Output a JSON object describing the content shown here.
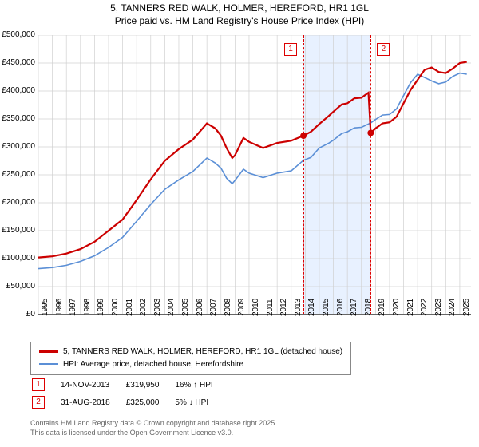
{
  "title_line1": "5, TANNERS RED WALK, HOLMER, HEREFORD, HR1 1GL",
  "title_line2": "Price paid vs. HM Land Registry's House Price Index (HPI)",
  "chart": {
    "type": "line",
    "xlim": [
      1995,
      2025.8
    ],
    "ylim": [
      0,
      500000
    ],
    "ytick_labels": [
      "£0",
      "£50,000",
      "£100,000",
      "£150,000",
      "£200,000",
      "£250,000",
      "£300,000",
      "£350,000",
      "£400,000",
      "£450,000",
      "£500,000"
    ],
    "yticks": [
      0,
      50000,
      100000,
      150000,
      200000,
      250000,
      300000,
      350000,
      400000,
      450000,
      500000
    ],
    "xticks": [
      1995,
      1996,
      1997,
      1998,
      1999,
      2000,
      2001,
      2002,
      2003,
      2004,
      2005,
      2006,
      2007,
      2008,
      2009,
      2010,
      2011,
      2012,
      2013,
      2014,
      2015,
      2016,
      2017,
      2018,
      2019,
      2020,
      2021,
      2022,
      2023,
      2024,
      2025
    ],
    "grid_color": "#d0d0d0",
    "series": {
      "price": {
        "color": "#cc0000",
        "width": 2.2,
        "data": [
          [
            1995,
            102000
          ],
          [
            1996,
            104000
          ],
          [
            1997,
            109000
          ],
          [
            1998,
            117000
          ],
          [
            1999,
            130000
          ],
          [
            2000,
            150000
          ],
          [
            2001,
            170000
          ],
          [
            2002,
            205000
          ],
          [
            2003,
            242000
          ],
          [
            2004,
            275000
          ],
          [
            2005,
            296000
          ],
          [
            2006,
            313000
          ],
          [
            2007,
            342000
          ],
          [
            2007.6,
            333000
          ],
          [
            2008,
            320000
          ],
          [
            2008.4,
            298000
          ],
          [
            2008.8,
            280000
          ],
          [
            2009,
            285000
          ],
          [
            2009.6,
            316000
          ],
          [
            2010,
            309000
          ],
          [
            2011,
            298000
          ],
          [
            2012,
            307000
          ],
          [
            2013,
            311000
          ],
          [
            2013.87,
            319950
          ],
          [
            2014.4,
            327000
          ],
          [
            2015,
            341000
          ],
          [
            2015.7,
            356000
          ],
          [
            2016,
            363000
          ],
          [
            2016.6,
            376000
          ],
          [
            2017,
            378000
          ],
          [
            2017.5,
            387000
          ],
          [
            2018,
            388000
          ],
          [
            2018.5,
            397000
          ],
          [
            2018.66,
            325000
          ],
          [
            2019,
            333000
          ],
          [
            2019.5,
            342000
          ],
          [
            2020,
            344000
          ],
          [
            2020.5,
            354000
          ],
          [
            2021,
            378000
          ],
          [
            2021.5,
            402000
          ],
          [
            2022,
            420000
          ],
          [
            2022.5,
            438000
          ],
          [
            2023,
            442000
          ],
          [
            2023.5,
            434000
          ],
          [
            2024,
            432000
          ],
          [
            2024.5,
            440000
          ],
          [
            2025,
            450000
          ],
          [
            2025.5,
            452000
          ]
        ]
      },
      "hpi": {
        "color": "#5b8fd6",
        "width": 1.6,
        "data": [
          [
            1995,
            82000
          ],
          [
            1996,
            84000
          ],
          [
            1997,
            88000
          ],
          [
            1998,
            95000
          ],
          [
            1999,
            105000
          ],
          [
            2000,
            120000
          ],
          [
            2001,
            138000
          ],
          [
            2002,
            167000
          ],
          [
            2003,
            197000
          ],
          [
            2004,
            224000
          ],
          [
            2005,
            241000
          ],
          [
            2006,
            256000
          ],
          [
            2007,
            280000
          ],
          [
            2007.6,
            271000
          ],
          [
            2008,
            262000
          ],
          [
            2008.4,
            244000
          ],
          [
            2008.8,
            234000
          ],
          [
            2009,
            240000
          ],
          [
            2009.6,
            260000
          ],
          [
            2010,
            253000
          ],
          [
            2011,
            245000
          ],
          [
            2012,
            253000
          ],
          [
            2013,
            257000
          ],
          [
            2013.87,
            276000
          ],
          [
            2014.4,
            281000
          ],
          [
            2015,
            298000
          ],
          [
            2015.7,
            307000
          ],
          [
            2016,
            312000
          ],
          [
            2016.6,
            324000
          ],
          [
            2017,
            327000
          ],
          [
            2017.5,
            334000
          ],
          [
            2018,
            335000
          ],
          [
            2018.5,
            341000
          ],
          [
            2018.66,
            343000
          ],
          [
            2019,
            349000
          ],
          [
            2019.5,
            357000
          ],
          [
            2020,
            358000
          ],
          [
            2020.5,
            368000
          ],
          [
            2021,
            392000
          ],
          [
            2021.5,
            415000
          ],
          [
            2022,
            430000
          ],
          [
            2022.5,
            424000
          ],
          [
            2023,
            418000
          ],
          [
            2023.5,
            413000
          ],
          [
            2024,
            416000
          ],
          [
            2024.5,
            426000
          ],
          [
            2025,
            432000
          ],
          [
            2025.5,
            430000
          ]
        ]
      }
    },
    "markers": [
      {
        "id": "1",
        "x": 2013.87,
        "y": 319950
      },
      {
        "id": "2",
        "x": 2018.66,
        "y": 325000
      }
    ]
  },
  "legend": {
    "items": [
      {
        "color": "#cc0000",
        "label": "5, TANNERS RED WALK, HOLMER, HEREFORD, HR1 1GL (detached house)"
      },
      {
        "color": "#5b8fd6",
        "label": "HPI: Average price, detached house, Herefordshire"
      }
    ]
  },
  "table": {
    "rows": [
      {
        "id": "1",
        "date": "14-NOV-2013",
        "price": "£319,950",
        "diff": "16% ↑ HPI"
      },
      {
        "id": "2",
        "date": "31-AUG-2018",
        "price": "£325,000",
        "diff": "5% ↓ HPI"
      }
    ]
  },
  "footer_line1": "Contains HM Land Registry data © Crown copyright and database right 2025.",
  "footer_line2": "This data is licensed under the Open Government Licence v3.0."
}
